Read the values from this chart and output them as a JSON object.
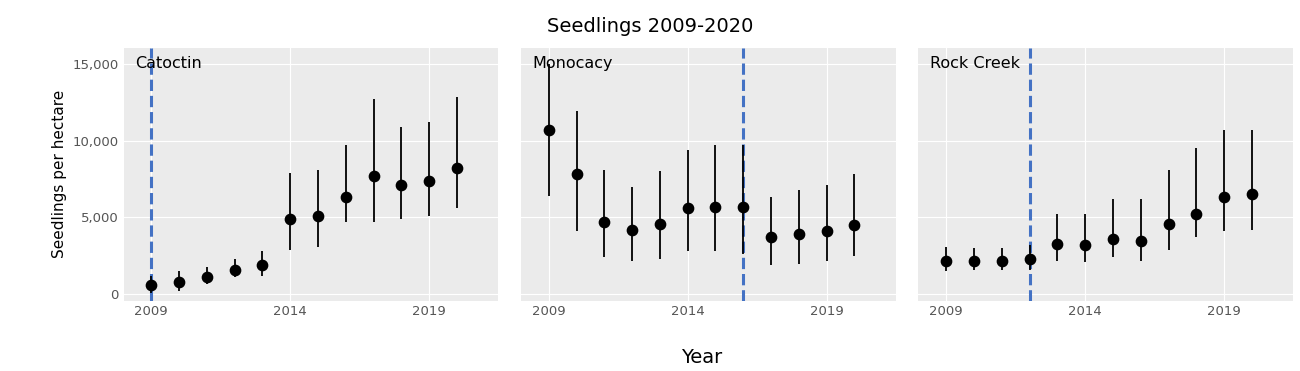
{
  "title": "Seedlings 2009-2020",
  "xlabel": "Year",
  "ylabel": "Seedlings per hectare",
  "background_color": "#ebebeb",
  "panels": [
    {
      "label": "Catoctin",
      "vline_year": 2009,
      "years": [
        2009,
        2010,
        2011,
        2012,
        2013,
        2014,
        2015,
        2016,
        2017,
        2018,
        2019,
        2020
      ],
      "means": [
        600,
        800,
        1100,
        1600,
        1900,
        4900,
        5100,
        6300,
        7700,
        7100,
        7400,
        8200
      ],
      "lowers": [
        100,
        200,
        700,
        1100,
        1200,
        2900,
        3100,
        4700,
        4700,
        4900,
        5100,
        5600
      ],
      "uppers": [
        1200,
        1500,
        1800,
        2300,
        2800,
        7900,
        8100,
        9700,
        12700,
        10900,
        11200,
        12800
      ],
      "ylim": [
        -400,
        16000
      ],
      "yticks": [
        0,
        5000,
        10000,
        15000
      ]
    },
    {
      "label": "Monocacy",
      "vline_year": 2016,
      "years": [
        2009,
        2010,
        2011,
        2012,
        2013,
        2014,
        2015,
        2016,
        2017,
        2018,
        2019,
        2020
      ],
      "means": [
        10700,
        7800,
        4700,
        4200,
        4600,
        5600,
        5700,
        5700,
        3700,
        3900,
        4100,
        4500
      ],
      "lowers": [
        6400,
        4100,
        2400,
        2200,
        2300,
        2800,
        2800,
        2600,
        1900,
        2000,
        2200,
        2500
      ],
      "uppers": [
        15000,
        11900,
        8100,
        7000,
        8000,
        9400,
        9700,
        9700,
        6300,
        6800,
        7100,
        7800
      ],
      "ylim": [
        -400,
        16000
      ],
      "yticks": [
        0,
        5000,
        10000,
        15000
      ]
    },
    {
      "label": "Rock Creek",
      "vline_year": 2012,
      "years": [
        2009,
        2010,
        2011,
        2012,
        2013,
        2014,
        2015,
        2016,
        2017,
        2018,
        2019,
        2020
      ],
      "means": [
        2200,
        2200,
        2200,
        2300,
        3300,
        3200,
        3600,
        3500,
        4600,
        5200,
        6300,
        6500
      ],
      "lowers": [
        1500,
        1600,
        1600,
        1600,
        2200,
        2100,
        2400,
        2200,
        2900,
        3700,
        4100,
        4200
      ],
      "uppers": [
        3100,
        3000,
        3000,
        3200,
        5200,
        5200,
        6200,
        6200,
        8100,
        9500,
        10700,
        10700
      ],
      "ylim": [
        -400,
        16000
      ],
      "yticks": [
        0,
        5000,
        10000,
        15000
      ]
    }
  ],
  "point_color": "black",
  "point_size": 55,
  "errorbar_color": "black",
  "errorbar_linewidth": 1.3,
  "vline_color": "#4472c4",
  "vline_style": "--",
  "vline_linewidth": 2.2,
  "label_fontsize": 11.5,
  "title_fontsize": 14,
  "axis_fontsize": 11,
  "tick_fontsize": 9.5,
  "ylabel_fontsize": 11
}
